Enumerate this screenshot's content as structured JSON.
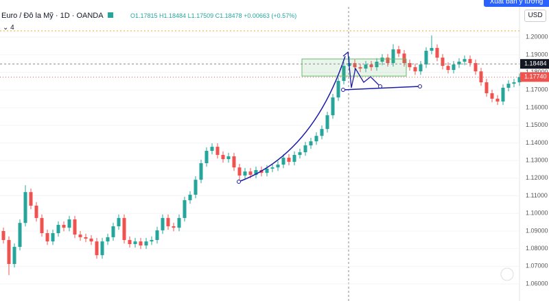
{
  "header": {
    "symbol": "Euro / Đô la Mỹ",
    "interval": "1D",
    "exchange": "OANDA",
    "ohlc": "O1.17815 H1.18484 L1.17509 C1.18478 +0.00663 (+0.57%)",
    "indicators": "4",
    "currency": "USD",
    "publish": "Xuất bản ý tưởng"
  },
  "chart_data": {
    "type": "candlestick",
    "up_color": "#26a69a",
    "down_color": "#ef5350",
    "ylim": [
      1.0503,
      1.2211
    ],
    "yticks": [
      {
        "value": 1.06,
        "label": "1.06000"
      },
      {
        "value": 1.07,
        "label": "1.07000"
      },
      {
        "value": 1.08,
        "label": "1.08000"
      },
      {
        "value": 1.09,
        "label": "1.09000"
      },
      {
        "value": 1.1,
        "label": "1.10000"
      },
      {
        "value": 1.11,
        "label": "1.11000"
      },
      {
        "value": 1.12,
        "label": "1.12000"
      },
      {
        "value": 1.13,
        "label": "1.13000"
      },
      {
        "value": 1.14,
        "label": "1.14000"
      },
      {
        "value": 1.15,
        "label": "1.15000"
      },
      {
        "value": 1.16,
        "label": "1.16000"
      },
      {
        "value": 1.17,
        "label": "1.17000"
      },
      {
        "value": 1.18,
        "label": "1.18000"
      },
      {
        "value": 1.19,
        "label": "1.19000"
      },
      {
        "value": 1.2,
        "label": "1.20000"
      }
    ],
    "crosshair_price": 1.18484,
    "last_price": {
      "value": 1.1774,
      "label": "1.17740"
    },
    "open": [
      1.09,
      1.0849,
      1.0713,
      1.081,
      1.0946,
      1.1121,
      1.1044,
      1.0974,
      1.0888,
      1.0841,
      1.0888,
      1.0935,
      1.0919,
      1.0966,
      1.088,
      1.0865,
      1.0857,
      1.0841,
      1.0763,
      1.0841,
      1.0865,
      1.0927,
      1.0974,
      1.0849,
      1.0826,
      1.0841,
      1.0818,
      1.0841,
      1.0849,
      1.0904,
      1.0974,
      1.0927,
      1.0919,
      1.0974,
      1.1075,
      1.1106,
      1.1191,
      1.1285,
      1.1355,
      1.1378,
      1.1332,
      1.1308,
      1.1324,
      1.1261,
      1.1215,
      1.1238,
      1.1219,
      1.1246,
      1.123,
      1.1254,
      1.1261,
      1.1277,
      1.1316,
      1.1293,
      1.1332,
      1.1347,
      1.1386,
      1.1409,
      1.144,
      1.1479,
      1.1557,
      1.1658,
      1.1752,
      1.1837,
      1.1853,
      1.183,
      1.1822,
      1.1845,
      1.183,
      1.1861,
      1.1884,
      1.1853,
      1.1931,
      1.1907,
      1.1853,
      1.183,
      1.1806,
      1.1845,
      1.1923,
      1.1939,
      1.1884,
      1.1837,
      1.1814,
      1.1845,
      1.1861,
      1.1876,
      1.1853,
      1.1806,
      1.1744,
      1.1682,
      1.1651,
      1.1635,
      1.1713,
      1.1736,
      1.1744
    ],
    "high": [
      1.092,
      1.0869,
      1.083,
      1.0966,
      1.116,
      1.1141,
      1.1064,
      1.0994,
      1.0908,
      1.0908,
      1.0955,
      1.0955,
      1.0986,
      1.0986,
      1.09,
      1.0885,
      1.0877,
      1.0861,
      1.0861,
      1.0885,
      1.0947,
      1.0994,
      1.0994,
      1.0869,
      1.0861,
      1.0861,
      1.0861,
      1.0869,
      1.0924,
      1.0994,
      1.0994,
      1.0947,
      1.0994,
      1.1095,
      1.1126,
      1.1211,
      1.1305,
      1.1375,
      1.1398,
      1.1398,
      1.1352,
      1.1344,
      1.1344,
      1.1281,
      1.1258,
      1.1258,
      1.1266,
      1.1266,
      1.1274,
      1.1281,
      1.1297,
      1.1336,
      1.1336,
      1.1352,
      1.1367,
      1.1406,
      1.1429,
      1.146,
      1.1499,
      1.1577,
      1.1678,
      1.1772,
      1.1857,
      1.189,
      1.1873,
      1.185,
      1.1865,
      1.1865,
      1.1881,
      1.1904,
      1.1904,
      1.196,
      1.1951,
      1.1927,
      1.1873,
      1.185,
      1.1865,
      1.1943,
      1.201,
      1.1959,
      1.1904,
      1.1857,
      1.1865,
      1.1881,
      1.1896,
      1.1896,
      1.1873,
      1.1826,
      1.1764,
      1.1702,
      1.1671,
      1.1733,
      1.1756,
      1.1764,
      1.1794
    ],
    "low": [
      1.0829,
      1.065,
      1.0693,
      1.079,
      1.0926,
      1.1024,
      1.0954,
      1.0868,
      1.0821,
      1.0821,
      1.0868,
      1.0899,
      1.0899,
      1.086,
      1.0845,
      1.0837,
      1.0821,
      1.0743,
      1.0743,
      1.0821,
      1.0845,
      1.0907,
      1.0829,
      1.0806,
      1.0806,
      1.0798,
      1.0798,
      1.0821,
      1.0829,
      1.0884,
      1.0907,
      1.0899,
      1.0899,
      1.0954,
      1.1055,
      1.1086,
      1.1171,
      1.1265,
      1.1335,
      1.1312,
      1.1288,
      1.1288,
      1.1241,
      1.118,
      1.1195,
      1.1199,
      1.1199,
      1.121,
      1.121,
      1.1234,
      1.1241,
      1.1257,
      1.1273,
      1.1273,
      1.1312,
      1.1327,
      1.1366,
      1.1389,
      1.142,
      1.1459,
      1.1537,
      1.1638,
      1.1732,
      1.1817,
      1.181,
      1.1802,
      1.1802,
      1.181,
      1.181,
      1.1841,
      1.1833,
      1.1833,
      1.1887,
      1.1833,
      1.181,
      1.1786,
      1.1786,
      1.1825,
      1.1903,
      1.1864,
      1.1817,
      1.1794,
      1.1794,
      1.1825,
      1.1841,
      1.1833,
      1.1786,
      1.1724,
      1.1662,
      1.1631,
      1.1615,
      1.1615,
      1.1693,
      1.1716,
      1.1724
    ],
    "close": [
      1.0849,
      1.0713,
      1.081,
      1.0946,
      1.1121,
      1.1044,
      1.0974,
      1.0888,
      1.0841,
      1.0888,
      1.0935,
      1.0919,
      1.0966,
      1.088,
      1.0865,
      1.0857,
      1.0841,
      1.0763,
      1.0841,
      1.0865,
      1.0927,
      1.0974,
      1.0849,
      1.0826,
      1.0841,
      1.0818,
      1.0841,
      1.0849,
      1.0904,
      1.0974,
      1.0927,
      1.0919,
      1.0974,
      1.1075,
      1.1106,
      1.1191,
      1.1285,
      1.1355,
      1.1378,
      1.1332,
      1.1308,
      1.1324,
      1.1261,
      1.1215,
      1.1238,
      1.1219,
      1.1246,
      1.123,
      1.1254,
      1.1261,
      1.1277,
      1.1316,
      1.1293,
      1.1332,
      1.1347,
      1.1386,
      1.1409,
      1.144,
      1.1479,
      1.1557,
      1.1658,
      1.1752,
      1.1837,
      1.1853,
      1.183,
      1.1822,
      1.1845,
      1.183,
      1.1861,
      1.1884,
      1.1853,
      1.1931,
      1.1907,
      1.1853,
      1.183,
      1.1806,
      1.1845,
      1.1923,
      1.1939,
      1.1884,
      1.1837,
      1.1814,
      1.1845,
      1.1861,
      1.1876,
      1.1853,
      1.1806,
      1.1744,
      1.1682,
      1.1651,
      1.1635,
      1.1713,
      1.1736,
      1.1744,
      1.1774
    ]
  }
}
